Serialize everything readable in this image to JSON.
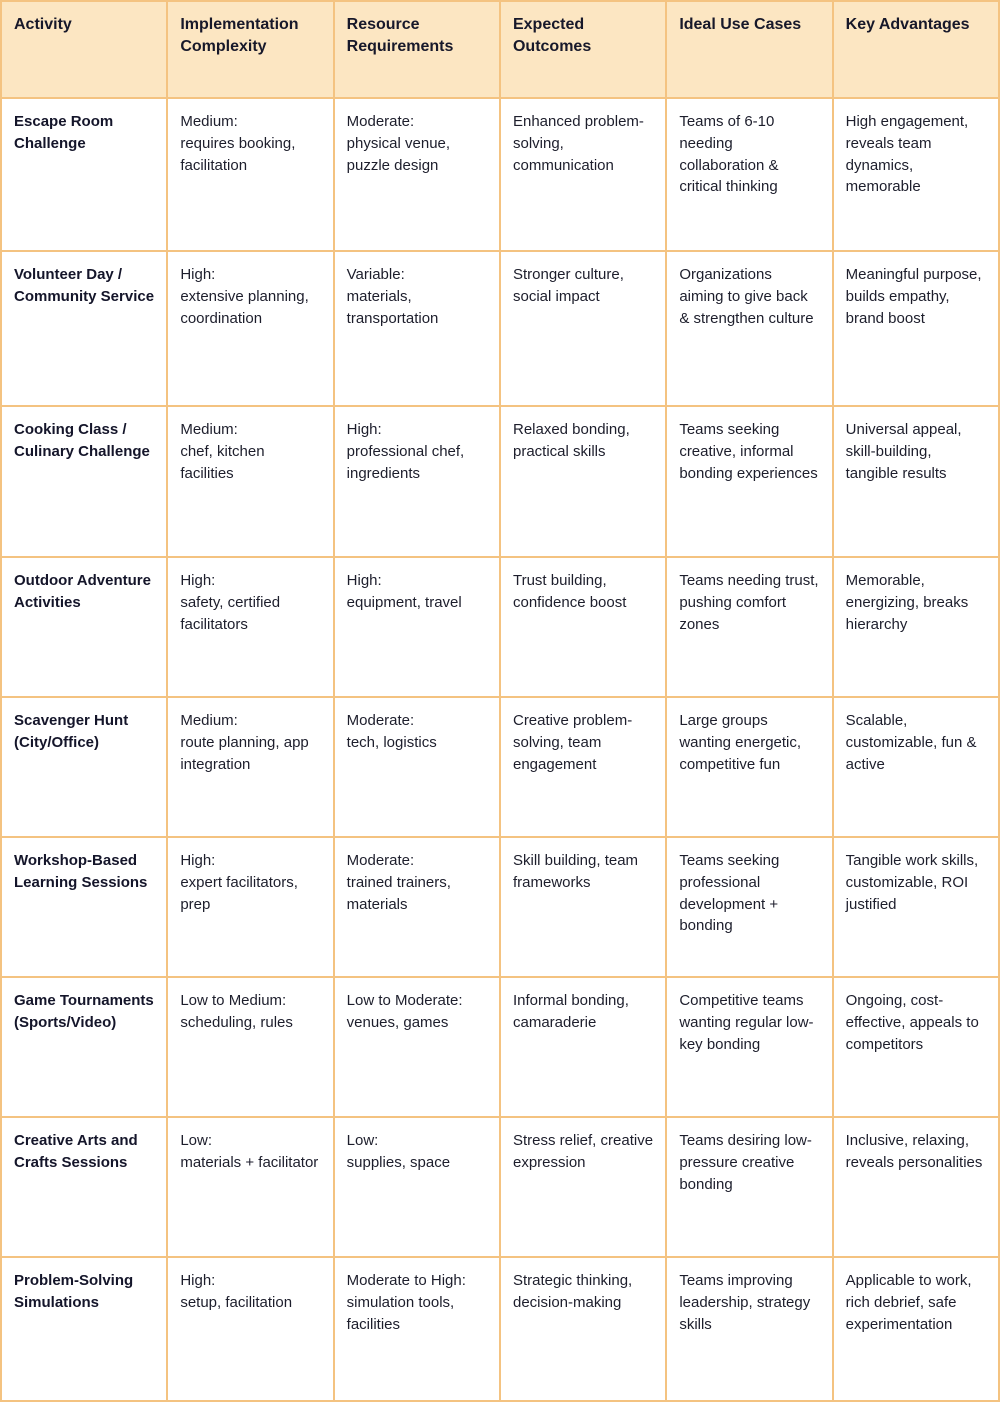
{
  "table": {
    "headers": [
      "Activity",
      "Implementation Complexity",
      "Resource Requirements",
      "Expected Outcomes",
      "Ideal Use Cases",
      "Key Advantages"
    ],
    "rows": [
      [
        "Escape Room Challenge",
        "Medium:\nrequires booking, facilitation",
        "Moderate:\nphysical venue, puzzle design",
        "Enhanced problem-solving, communication",
        "Teams of 6-10 needing collaboration & critical thinking",
        "High engagement, reveals team dynamics, memorable"
      ],
      [
        "Volunteer Day / Community Service",
        "High:\nextensive planning, coordination",
        "Variable:\nmaterials, transportation",
        "Stronger culture, social impact",
        "Organizations aiming to give back & strengthen culture",
        "Meaningful purpose, builds empathy, brand boost"
      ],
      [
        "Cooking Class / Culinary Challenge",
        "Medium:\nchef, kitchen facilities",
        "High:\nprofessional chef, ingredients",
        "Relaxed bonding, practical skills",
        "Teams seeking creative, informal bonding experiences",
        "Universal appeal, skill-building, tangible results"
      ],
      [
        "Outdoor Adventure Activities",
        "High:\nsafety, certified facilitators",
        "High:\nequipment, travel",
        "Trust building, confidence boost",
        "Teams needing trust, pushing comfort zones",
        "Memorable, energizing, breaks hierarchy"
      ],
      [
        "Scavenger Hunt (City/Office)",
        "Medium:\nroute planning, app integration",
        "Moderate:\ntech, logistics",
        "Creative problem-solving, team engagement",
        "Large groups wanting energetic, competitive fun",
        "Scalable, customizable, fun & active"
      ],
      [
        "Workshop-Based Learning Sessions",
        "High:\nexpert facilitators, prep",
        "Moderate:\ntrained trainers, materials",
        "Skill building, team frameworks",
        "Teams seeking professional development + bonding",
        "Tangible work skills, customizable, ROI justified"
      ],
      [
        "Game Tournaments (Sports/Video)",
        "Low to Medium:\nscheduling, rules",
        "Low to Moderate:\nvenues, games",
        "Informal bonding, camaraderie",
        "Competitive teams wanting regular low-key bonding",
        "Ongoing, cost-effective, appeals to competitors"
      ],
      [
        "Creative Arts and Crafts Sessions",
        "Low:\nmaterials + facilitator",
        "Low:\nsupplies, space",
        "Stress relief, creative expression",
        "Teams desiring low-pressure creative bonding",
        "Inclusive, relaxing, reveals personalities"
      ],
      [
        "Problem-Solving Simulations",
        "High:\nsetup, facilitation",
        "Moderate to High:\nsimulation tools, facilities",
        "Strategic thinking, decision-making",
        "Teams improving leadership, strategy skills",
        "Applicable to work, rich debrief, safe experimentation"
      ]
    ]
  }
}
